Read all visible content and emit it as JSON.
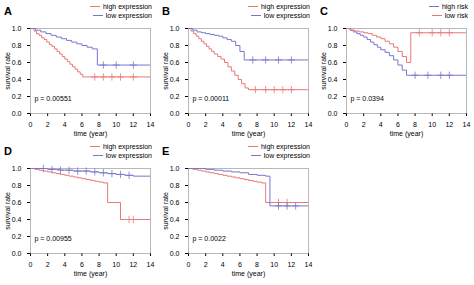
{
  "chart_data": [
    {
      "type": "step",
      "title": "A",
      "xlabel": "time (year)",
      "ylabel": "survival rate",
      "annotations": [
        "p = 0.00551"
      ],
      "legend": "upper right",
      "xlim": [
        0,
        14
      ],
      "ylim": [
        0.0,
        1.0
      ],
      "xticks": [
        0,
        2,
        4,
        6,
        8,
        10,
        12,
        14
      ],
      "yticks": [
        {
          "value": 0.0,
          "label": "0.0"
        },
        0.2,
        0.4,
        0.6,
        0.8,
        {
          "value": 1.0,
          "label": "1.0"
        }
      ],
      "series": [
        {
          "name": "high expression",
          "color": "#e87878",
          "marker": "plus",
          "x": [
            0,
            0.4,
            0.7,
            1.0,
            1.3,
            1.6,
            1.9,
            2.2,
            2.5,
            2.8,
            3.1,
            3.4,
            3.7,
            4.0,
            4.3,
            4.6,
            4.9,
            5.2,
            5.5,
            5.8,
            6.1,
            6.4,
            6.7,
            7.0,
            7.5,
            14.0
          ],
          "values": [
            1.0,
            0.97,
            0.94,
            0.92,
            0.89,
            0.87,
            0.84,
            0.81,
            0.79,
            0.76,
            0.73,
            0.7,
            0.67,
            0.64,
            0.61,
            0.58,
            0.55,
            0.52,
            0.49,
            0.46,
            0.43,
            0.43,
            0.43,
            0.43,
            0.43,
            0.43
          ],
          "censors_x": [
            7.5,
            8.5,
            9.5,
            10.5,
            12.0
          ],
          "censors_y": [
            0.43,
            0.43,
            0.43,
            0.43,
            0.43
          ]
        },
        {
          "name": "low expression",
          "color": "#7777cc",
          "marker": "plus",
          "x": [
            0,
            0.6,
            1.2,
            1.8,
            2.4,
            3.0,
            3.6,
            4.2,
            4.8,
            5.4,
            6.0,
            6.6,
            7.2,
            7.8,
            14.0
          ],
          "values": [
            1.0,
            0.98,
            0.96,
            0.94,
            0.92,
            0.9,
            0.88,
            0.86,
            0.84,
            0.82,
            0.8,
            0.78,
            0.76,
            0.57,
            0.57
          ],
          "censors_x": [
            8.5,
            10.0,
            12.0
          ],
          "censors_y": [
            0.57,
            0.57,
            0.57
          ]
        }
      ]
    },
    {
      "type": "step",
      "title": "B",
      "xlabel": "time (year)",
      "ylabel": "survival rate",
      "annotations": [
        "p = 0.00011"
      ],
      "legend": "upper right",
      "xlim": [
        0,
        14
      ],
      "ylim": [
        0.0,
        1.0
      ],
      "xticks": [
        0,
        2,
        4,
        6,
        8,
        10,
        12,
        14
      ],
      "yticks": [
        {
          "value": 0.0,
          "label": "0.0"
        },
        0.2,
        0.4,
        0.6,
        0.8,
        {
          "value": 1.0,
          "label": "1.0"
        }
      ],
      "series": [
        {
          "name": "high expression",
          "color": "#e87878",
          "marker": "plus",
          "x": [
            0,
            0.3,
            0.6,
            0.9,
            1.2,
            1.5,
            1.8,
            2.1,
            2.4,
            2.7,
            3.0,
            3.4,
            3.8,
            4.2,
            4.6,
            5.0,
            5.4,
            5.8,
            6.2,
            6.6,
            7.0,
            7.5,
            14.0
          ],
          "values": [
            1.0,
            0.97,
            0.94,
            0.91,
            0.88,
            0.85,
            0.82,
            0.79,
            0.76,
            0.73,
            0.7,
            0.67,
            0.64,
            0.6,
            0.55,
            0.5,
            0.45,
            0.4,
            0.35,
            0.3,
            0.28,
            0.28,
            0.28
          ],
          "censors_x": [
            7.8,
            9.0,
            10.0,
            11.0,
            12.0
          ],
          "censors_y": [
            0.28,
            0.28,
            0.28,
            0.28,
            0.28
          ]
        },
        {
          "name": "low expression",
          "color": "#7777cc",
          "marker": "plus",
          "x": [
            0,
            0.5,
            1.0,
            1.5,
            2.0,
            2.5,
            3.0,
            3.5,
            4.0,
            4.5,
            5.0,
            5.5,
            6.0,
            6.5,
            7.0,
            14.0
          ],
          "values": [
            1.0,
            0.98,
            0.96,
            0.95,
            0.94,
            0.93,
            0.92,
            0.91,
            0.89,
            0.87,
            0.85,
            0.8,
            0.73,
            0.63,
            0.63,
            0.63
          ],
          "censors_x": [
            7.5,
            9.0,
            10.5,
            12.0
          ],
          "censors_y": [
            0.63,
            0.63,
            0.63,
            0.63
          ]
        }
      ]
    },
    {
      "type": "step",
      "title": "C",
      "xlabel": "time (year)",
      "ylabel": "survival rate",
      "annotations": [
        "p = 0.0394"
      ],
      "legend": "upper right",
      "xlim": [
        0,
        14
      ],
      "ylim": [
        0.0,
        1.0
      ],
      "xticks": [
        0,
        2,
        4,
        6,
        8,
        10,
        12,
        14
      ],
      "yticks": [
        {
          "value": 0.0,
          "label": "0.0"
        },
        0.2,
        0.4,
        0.6,
        0.8,
        {
          "value": 1.0,
          "label": "1.0"
        }
      ],
      "series": [
        {
          "name": "high risk",
          "color": "#7777cc",
          "marker": "plus",
          "x": [
            0,
            0.4,
            0.8,
            1.2,
            1.6,
            2.0,
            2.4,
            2.8,
            3.2,
            3.6,
            4.0,
            4.5,
            5.0,
            5.5,
            6.0,
            6.5,
            7.0,
            7.5,
            14.0
          ],
          "values": [
            1.0,
            0.98,
            0.96,
            0.94,
            0.92,
            0.9,
            0.87,
            0.84,
            0.81,
            0.78,
            0.75,
            0.72,
            0.68,
            0.63,
            0.57,
            0.51,
            0.45,
            0.45,
            0.45
          ],
          "censors_x": [
            8.0,
            9.5,
            11.0,
            12.0
          ],
          "censors_y": [
            0.45,
            0.45,
            0.45,
            0.45
          ]
        },
        {
          "name": "low risk",
          "color": "#e87878",
          "marker": "plus",
          "x": [
            0,
            0.5,
            1.0,
            1.5,
            2.0,
            2.5,
            3.0,
            3.5,
            4.0,
            4.5,
            5.0,
            5.5,
            6.0,
            6.5,
            7.0,
            7.5,
            8.0,
            14.0
          ],
          "values": [
            1.0,
            0.98,
            0.97,
            0.96,
            0.95,
            0.94,
            0.92,
            0.9,
            0.88,
            0.85,
            0.82,
            0.78,
            0.73,
            0.67,
            0.6,
            0.95,
            0.95,
            0.95
          ],
          "censors_x": [
            8.5,
            10.0,
            11.0,
            12.0
          ],
          "censors_y": [
            0.95,
            0.95,
            0.95,
            0.95
          ]
        }
      ]
    },
    {
      "type": "step",
      "title": "D",
      "xlabel": "time (year)",
      "ylabel": "survival rate",
      "annotations": [
        "p = 0.00955"
      ],
      "legend": "upper right",
      "xlim": [
        0,
        14
      ],
      "ylim": [
        0.0,
        1.0
      ],
      "xticks": [
        0,
        2,
        4,
        6,
        8,
        10,
        12,
        14
      ],
      "yticks": [
        {
          "value": 0.0,
          "label": "0.0"
        },
        0.2,
        0.4,
        0.6,
        0.8,
        {
          "value": 1.0,
          "label": "1.0"
        }
      ],
      "series": [
        {
          "name": "high expression",
          "color": "#e87878",
          "marker": "plus",
          "x": [
            0,
            0.5,
            1.0,
            1.5,
            2.0,
            2.5,
            3.0,
            3.5,
            4.0,
            4.5,
            5.0,
            5.5,
            6.0,
            6.5,
            7.0,
            7.5,
            8.0,
            8.5,
            9.0,
            9.5,
            10.0,
            10.5,
            11.0,
            14.0
          ],
          "values": [
            1.0,
            0.99,
            0.98,
            0.97,
            0.96,
            0.95,
            0.94,
            0.93,
            0.92,
            0.91,
            0.9,
            0.89,
            0.88,
            0.87,
            0.86,
            0.85,
            0.84,
            0.83,
            0.6,
            0.6,
            0.6,
            0.4,
            0.4,
            0.4
          ],
          "censors_x": [
            11.5,
            12.0
          ],
          "censors_y": [
            0.4,
            0.4
          ]
        },
        {
          "name": "low expression",
          "color": "#7777cc",
          "marker": "plus",
          "x": [
            0,
            0.5,
            1.0,
            1.5,
            2.0,
            2.5,
            3.0,
            3.5,
            4.0,
            5.0,
            6.0,
            7.0,
            8.0,
            9.0,
            10.0,
            11.0,
            12.0,
            14.0
          ],
          "values": [
            1.0,
            1.0,
            1.0,
            1.0,
            0.99,
            0.99,
            0.99,
            0.98,
            0.98,
            0.97,
            0.97,
            0.96,
            0.95,
            0.94,
            0.93,
            0.92,
            0.91,
            0.91
          ],
          "censors_x": [
            1.5,
            2.5,
            3.5,
            4.5,
            5.5,
            6.5,
            7.5,
            8.5,
            9.5,
            10.5,
            11.5
          ],
          "censors_y": [
            1.0,
            0.99,
            0.98,
            0.98,
            0.97,
            0.97,
            0.96,
            0.95,
            0.94,
            0.93,
            0.92
          ]
        }
      ]
    },
    {
      "type": "step",
      "title": "E",
      "xlabel": "time (year)",
      "ylabel": "survival rate",
      "annotations": [
        "p = 0.0022"
      ],
      "legend": "upper right",
      "xlim": [
        0,
        14
      ],
      "ylim": [
        0.0,
        1.0
      ],
      "xticks": [
        0,
        2,
        4,
        6,
        8,
        10,
        12,
        14
      ],
      "yticks": [
        {
          "value": 0.0,
          "label": "0.0"
        },
        0.2,
        0.4,
        0.6,
        0.8,
        {
          "value": 1.0,
          "label": "1.0"
        }
      ],
      "series": [
        {
          "name": "high expression",
          "color": "#e87878",
          "marker": "plus",
          "x": [
            0,
            0.5,
            1.0,
            1.5,
            2.0,
            2.5,
            3.0,
            3.5,
            4.0,
            4.5,
            5.0,
            5.5,
            6.0,
            6.5,
            7.0,
            7.5,
            8.0,
            8.5,
            9.0,
            9.5,
            10.0,
            14.0
          ],
          "values": [
            1.0,
            0.99,
            0.98,
            0.97,
            0.96,
            0.95,
            0.94,
            0.93,
            0.92,
            0.91,
            0.9,
            0.89,
            0.88,
            0.87,
            0.86,
            0.85,
            0.84,
            0.83,
            0.6,
            0.6,
            0.6,
            0.6
          ],
          "censors_x": [
            10.5,
            11.5
          ],
          "censors_y": [
            0.6,
            0.6
          ]
        },
        {
          "name": "low expression",
          "color": "#7777cc",
          "marker": "plus",
          "x": [
            0,
            0.5,
            1.0,
            1.5,
            2.0,
            2.5,
            3.0,
            3.5,
            4.0,
            5.0,
            6.0,
            7.0,
            8.0,
            9.0,
            9.5,
            10.0,
            14.0
          ],
          "values": [
            1.0,
            1.0,
            1.0,
            1.0,
            0.99,
            0.99,
            0.98,
            0.98,
            0.97,
            0.96,
            0.95,
            0.93,
            0.92,
            0.91,
            0.56,
            0.56,
            0.56
          ],
          "censors_x": [
            10.5,
            11.5,
            12.5
          ],
          "censors_y": [
            0.56,
            0.56,
            0.56
          ]
        }
      ]
    }
  ]
}
